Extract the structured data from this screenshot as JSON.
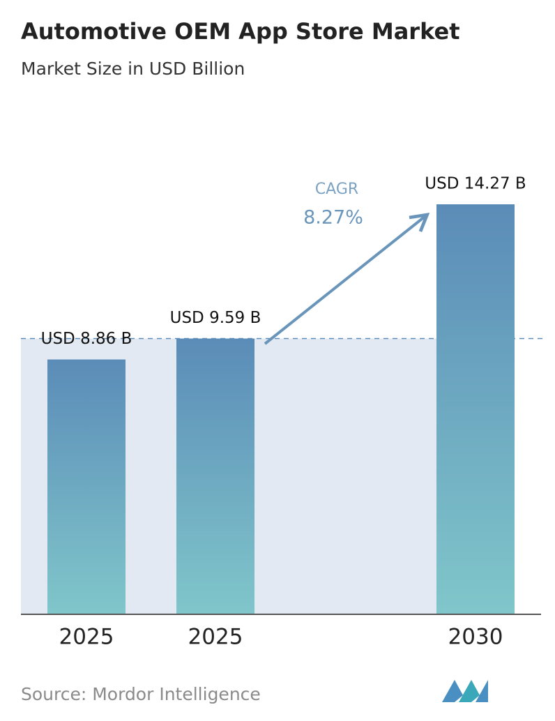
{
  "chart_data": {
    "type": "bar",
    "title": "Automotive OEM App Store Market",
    "subtitle": "Market Size in USD Billion",
    "categories": [
      "2025",
      "2025",
      "2030"
    ],
    "values": [
      8.86,
      9.59,
      14.27
    ],
    "value_labels": [
      "USD 8.86 B",
      "USD 9.59 B",
      "USD 14.27 B"
    ],
    "gradient": [
      "#5b8cb8",
      "#80c6ca"
    ],
    "annotations": {
      "cagr_label": "CAGR",
      "cagr_value": "8.27%"
    },
    "source": "Source: Mordor Intelligence"
  }
}
